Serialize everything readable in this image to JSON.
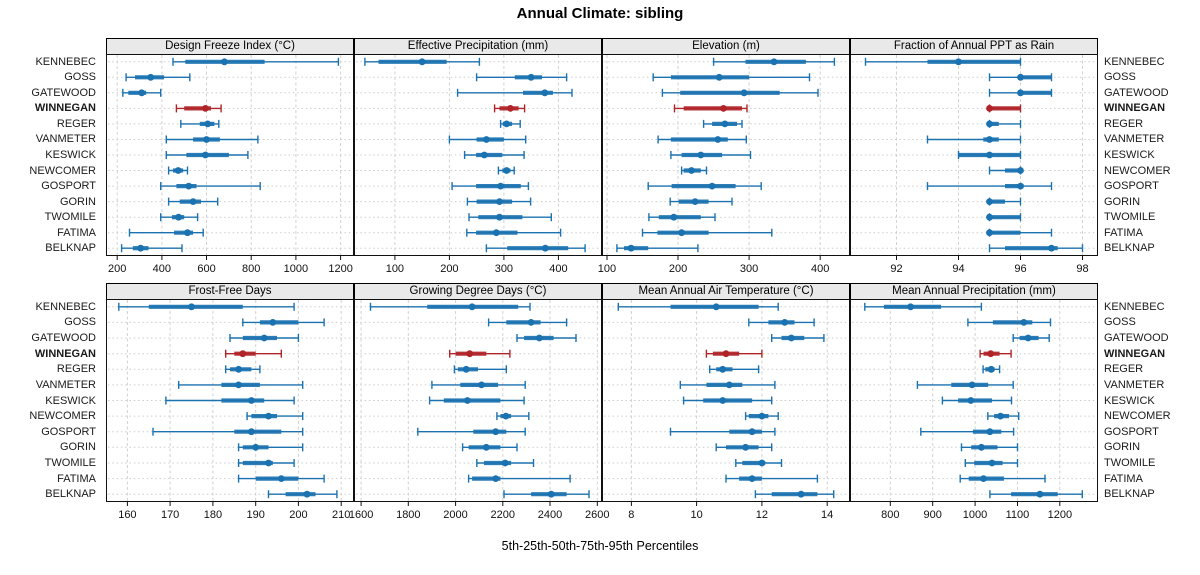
{
  "title": "Annual Climate: sibling",
  "footer": "5th-25th-50th-75th-95th Percentiles",
  "percentile_labels": [
    "5th",
    "25th",
    "50th",
    "75th",
    "95th"
  ],
  "stations": [
    "KENNEBEC",
    "GOSS",
    "GATEWOOD",
    "WINNEGAN",
    "REGER",
    "VANMETER",
    "KESWICK",
    "NEWCOMER",
    "GOSPORT",
    "GORIN",
    "TWOMILE",
    "FATIMA",
    "BELKNAP"
  ],
  "highlight_station": "WINNEGAN",
  "colors": {
    "series_blue": "#1b72b0",
    "highlight_red": "#b02428",
    "strip_bg": "#e9e9e9",
    "grid": "#d2d2d2",
    "row_grid": "#cdcdcd",
    "border": "#111111"
  },
  "chart_data": [
    {
      "type": "percentile-dotplot",
      "title": "Design Freeze Index (°C)",
      "xlim": [
        150,
        1260
      ],
      "ticks": [
        200,
        400,
        600,
        800,
        1000,
        1200
      ],
      "values": [
        [
          450,
          505,
          680,
          860,
          1190
        ],
        [
          240,
          280,
          350,
          410,
          525
        ],
        [
          225,
          250,
          310,
          330,
          395
        ],
        [
          465,
          500,
          595,
          620,
          665
        ],
        [
          485,
          570,
          605,
          635,
          655
        ],
        [
          420,
          540,
          600,
          660,
          830
        ],
        [
          420,
          510,
          595,
          700,
          785
        ],
        [
          430,
          450,
          473,
          495,
          515
        ],
        [
          395,
          465,
          520,
          555,
          840
        ],
        [
          430,
          480,
          540,
          575,
          650
        ],
        [
          395,
          445,
          475,
          500,
          560
        ],
        [
          255,
          455,
          515,
          540,
          585
        ],
        [
          220,
          270,
          305,
          340,
          490
        ]
      ]
    },
    {
      "type": "percentile-dotplot",
      "title": "Effective Precipitation (mm)",
      "xlim": [
        25,
        480
      ],
      "ticks": [
        100,
        200,
        300,
        400
      ],
      "values": [
        [
          45,
          70,
          150,
          195,
          255
        ],
        [
          250,
          320,
          350,
          370,
          415
        ],
        [
          215,
          335,
          375,
          390,
          425
        ],
        [
          283,
          292,
          312,
          327,
          338
        ],
        [
          294,
          298,
          305,
          315,
          330
        ],
        [
          200,
          250,
          268,
          300,
          340
        ],
        [
          228,
          249,
          264,
          297,
          337
        ],
        [
          290,
          297,
          305,
          312,
          319
        ],
        [
          205,
          249,
          294,
          331,
          345
        ],
        [
          233,
          250,
          292,
          315,
          349
        ],
        [
          236,
          253,
          292,
          334,
          387
        ],
        [
          232,
          249,
          286,
          325,
          404
        ],
        [
          268,
          306,
          376,
          418,
          449
        ]
      ]
    },
    {
      "type": "percentile-dotplot",
      "title": "Elevation (m)",
      "xlim": [
        93,
        442
      ],
      "ticks": [
        100,
        200,
        300,
        400
      ],
      "values": [
        [
          250,
          295,
          335,
          380,
          420
        ],
        [
          165,
          190,
          258,
          300,
          385
        ],
        [
          178,
          203,
          293,
          343,
          397
        ],
        [
          195,
          208,
          264,
          290,
          297
        ],
        [
          236,
          248,
          266,
          283,
          290
        ],
        [
          172,
          190,
          256,
          270,
          296
        ],
        [
          190,
          205,
          232,
          262,
          302
        ],
        [
          205,
          208,
          219,
          232,
          240
        ],
        [
          158,
          191,
          248,
          281,
          317
        ],
        [
          189,
          201,
          224,
          243,
          276
        ],
        [
          159,
          173,
          194,
          232,
          252
        ],
        [
          150,
          171,
          205,
          243,
          332
        ],
        [
          114,
          124,
          134,
          158,
          228
        ]
      ]
    },
    {
      "type": "percentile-dotplot",
      "title": "Fraction of Annual PPT as Rain",
      "xlim": [
        90.5,
        98.5
      ],
      "ticks": [
        92,
        94,
        96,
        98
      ],
      "values": [
        [
          91,
          93,
          94,
          96,
          96
        ],
        [
          95,
          96,
          96,
          97,
          97
        ],
        [
          95,
          96,
          96,
          97,
          97
        ],
        [
          95,
          95,
          95,
          96,
          96
        ],
        [
          95,
          95,
          95,
          95.3,
          96
        ],
        [
          93,
          94.8,
          95,
          95.3,
          96
        ],
        [
          94,
          94,
          95,
          96,
          96
        ],
        [
          95,
          95.5,
          96,
          96,
          96
        ],
        [
          93,
          95.5,
          96,
          96.1,
          97
        ],
        [
          95,
          95,
          95,
          95.5,
          96
        ],
        [
          95,
          95,
          95,
          96,
          96
        ],
        [
          95,
          95,
          95,
          96,
          97
        ],
        [
          95,
          95.5,
          97,
          97.2,
          98
        ]
      ]
    },
    {
      "type": "percentile-dotplot",
      "title": "Frost-Free Days",
      "xlim": [
        155,
        213
      ],
      "ticks": [
        160,
        170,
        180,
        190,
        200,
        210
      ],
      "values": [
        [
          158,
          165,
          175,
          187,
          199
        ],
        [
          187,
          191,
          194,
          200,
          206
        ],
        [
          184,
          187,
          192,
          195,
          200
        ],
        [
          183,
          185,
          187,
          190,
          196
        ],
        [
          183,
          184,
          186,
          189,
          191
        ],
        [
          172,
          182,
          186,
          191,
          201
        ],
        [
          169,
          182,
          189,
          192,
          199
        ],
        [
          188,
          189,
          193,
          195,
          201
        ],
        [
          166,
          185,
          189,
          196,
          201
        ],
        [
          186,
          187,
          190,
          193,
          201
        ],
        [
          186,
          187,
          193,
          194,
          199
        ],
        [
          186,
          190,
          196,
          200,
          206
        ],
        [
          193,
          197,
          202,
          204,
          209
        ]
      ]
    },
    {
      "type": "percentile-dotplot",
      "title": "Growing Degree Days (°C)",
      "xlim": [
        1570,
        2620
      ],
      "ticks": [
        1600,
        1800,
        2000,
        2200,
        2400,
        2600
      ],
      "values": [
        [
          1640,
          1880,
          2070,
          2265,
          2315
        ],
        [
          2140,
          2215,
          2320,
          2360,
          2470
        ],
        [
          2260,
          2290,
          2355,
          2415,
          2510
        ],
        [
          1975,
          2000,
          2060,
          2130,
          2230
        ],
        [
          1995,
          2010,
          2045,
          2095,
          2215
        ],
        [
          1900,
          2020,
          2110,
          2180,
          2295
        ],
        [
          1890,
          1950,
          2050,
          2190,
          2290
        ],
        [
          2175,
          2190,
          2213,
          2235,
          2310
        ],
        [
          1840,
          2075,
          2170,
          2215,
          2295
        ],
        [
          2030,
          2055,
          2130,
          2190,
          2260
        ],
        [
          2090,
          2120,
          2210,
          2235,
          2330
        ],
        [
          2055,
          2070,
          2170,
          2190,
          2485
        ],
        [
          2205,
          2320,
          2405,
          2470,
          2565
        ]
      ]
    },
    {
      "type": "percentile-dotplot",
      "title": "Mean Annual Air Temperature (°C)",
      "xlim": [
        7.1,
        14.7
      ],
      "ticks": [
        8,
        10,
        12,
        14
      ],
      "values": [
        [
          7.6,
          9.2,
          10.6,
          11.9,
          12.5
        ],
        [
          11.6,
          12.2,
          12.7,
          13.0,
          13.6
        ],
        [
          12.3,
          12.6,
          12.9,
          13.3,
          13.9
        ],
        [
          10.3,
          10.5,
          10.9,
          11.3,
          12.0
        ],
        [
          10.4,
          10.6,
          10.8,
          11.1,
          11.9
        ],
        [
          9.5,
          10.3,
          11.0,
          11.4,
          12.4
        ],
        [
          9.6,
          10.2,
          10.8,
          11.7,
          12.3
        ],
        [
          11.5,
          11.6,
          12.0,
          12.2,
          12.5
        ],
        [
          9.2,
          11.0,
          11.7,
          12.0,
          12.4
        ],
        [
          10.6,
          10.9,
          11.5,
          11.9,
          12.3
        ],
        [
          11.2,
          11.4,
          12.0,
          12.1,
          12.6
        ],
        [
          10.9,
          11.3,
          11.7,
          12.0,
          13.7
        ],
        [
          11.8,
          12.3,
          13.2,
          13.7,
          14.2
        ]
      ]
    },
    {
      "type": "percentile-dotplot",
      "title": "Mean Annual Precipitation (mm)",
      "xlim": [
        705,
        1290
      ],
      "ticks": [
        800,
        900,
        1000,
        1100,
        1200
      ],
      "values": [
        [
          740,
          785,
          848,
          920,
          1015
        ],
        [
          983,
          1042,
          1115,
          1135,
          1178
        ],
        [
          1090,
          1105,
          1125,
          1150,
          1175
        ],
        [
          1012,
          1020,
          1037,
          1058,
          1085
        ],
        [
          1019,
          1024,
          1038,
          1046,
          1058
        ],
        [
          864,
          944,
          993,
          1031,
          1090
        ],
        [
          923,
          960,
          990,
          1040,
          1086
        ],
        [
          1030,
          1045,
          1060,
          1080,
          1103
        ],
        [
          872,
          995,
          1035,
          1062,
          1091
        ],
        [
          968,
          991,
          1015,
          1053,
          1100
        ],
        [
          977,
          998,
          1040,
          1065,
          1100
        ],
        [
          965,
          985,
          1020,
          1068,
          1165
        ],
        [
          1035,
          1085,
          1153,
          1195,
          1253
        ]
      ]
    }
  ]
}
